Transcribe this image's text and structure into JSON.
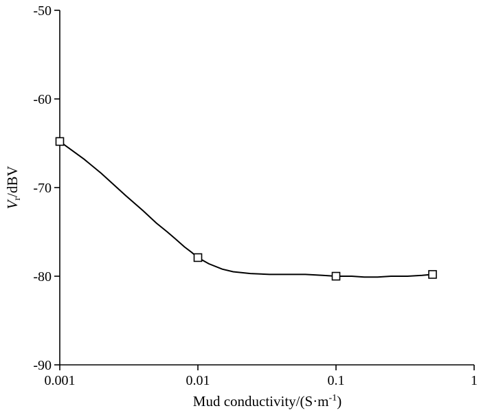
{
  "chart_data": {
    "type": "line",
    "xscale": "log",
    "xlim": [
      0.001,
      1
    ],
    "ylim": [
      -90,
      -50
    ],
    "xticks": [
      0.001,
      0.01,
      0.1,
      1
    ],
    "xtick_labels": [
      "0.001",
      "0.01",
      "0.1",
      "1"
    ],
    "yticks": [
      -90,
      -80,
      -70,
      -60,
      -50
    ],
    "ytick_labels": [
      "-90",
      "-80",
      "-70",
      "-60",
      "-50"
    ],
    "xlabel": {
      "main": "Mud conductivity/(S·m",
      "sup": "-1",
      "end": ")"
    },
    "ylabel": {
      "var": "V",
      "sub": "r",
      "rest": "/dBV"
    },
    "grid": false,
    "series": [
      {
        "markers": {
          "x": [
            0.001,
            0.01,
            0.1,
            0.5
          ],
          "y": [
            -64.8,
            -77.9,
            -80.0,
            -79.8
          ]
        },
        "curve": {
          "x": [
            0.001,
            0.0015,
            0.002,
            0.003,
            0.004,
            0.005,
            0.006,
            0.007,
            0.008,
            0.009,
            0.01,
            0.012,
            0.015,
            0.018,
            0.024,
            0.033,
            0.045,
            0.06,
            0.08,
            0.1,
            0.13,
            0.16,
            0.2,
            0.25,
            0.33,
            0.42,
            0.5
          ],
          "y": [
            -64.8,
            -66.8,
            -68.4,
            -70.9,
            -72.6,
            -74.0,
            -75.0,
            -75.9,
            -76.7,
            -77.3,
            -77.9,
            -78.6,
            -79.2,
            -79.5,
            -79.7,
            -79.8,
            -79.8,
            -79.8,
            -79.9,
            -80.0,
            -80.0,
            -80.1,
            -80.1,
            -80.0,
            -80.0,
            -79.9,
            -79.8
          ]
        }
      }
    ]
  }
}
